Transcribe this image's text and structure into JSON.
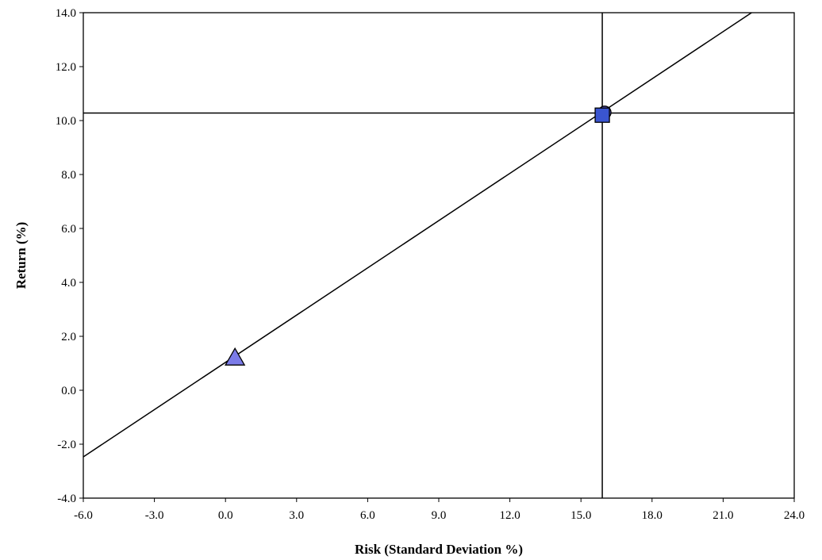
{
  "chart_data": {
    "type": "scatter",
    "xlabel": "Risk (Standard Deviation %)",
    "ylabel": "Return (%)",
    "xlim": [
      -6.0,
      24.0
    ],
    "ylim": [
      -4.0,
      14.0
    ],
    "x_ticks": [
      "-6.0",
      "-3.0",
      "0.0",
      "3.0",
      "6.0",
      "9.0",
      "12.0",
      "15.0",
      "18.0",
      "21.0",
      "24.0"
    ],
    "y_ticks": [
      "-4.0",
      "-2.0",
      "0.0",
      "2.0",
      "4.0",
      "6.0",
      "8.0",
      "10.0",
      "12.0",
      "14.0"
    ],
    "grid": false,
    "reference_lines": {
      "vertical_x": 15.9,
      "horizontal_y": 10.28
    },
    "capital_market_line": {
      "points": [
        [
          -6.0,
          -2.47
        ],
        [
          22.2,
          14.0
        ]
      ]
    },
    "points": [
      {
        "marker": "triangle",
        "x": 0.4,
        "y": 1.2,
        "color": "#7b7be8"
      },
      {
        "marker": "circle",
        "x": 16.0,
        "y": 10.3,
        "color": "#5b5bd6"
      },
      {
        "marker": "square",
        "x": 15.9,
        "y": 10.2,
        "color": "#3a55d0"
      }
    ]
  }
}
